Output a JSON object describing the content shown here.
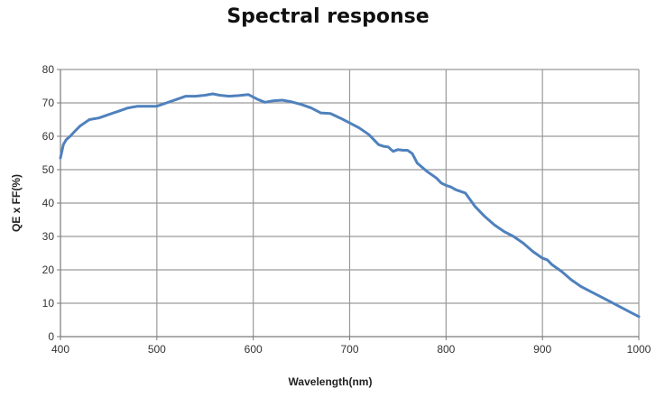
{
  "chart_data": {
    "type": "line",
    "title": "Spectral response",
    "xlabel": "Wavelength(nm)",
    "ylabel": "QE x FF(%)",
    "xlim": [
      400,
      1000
    ],
    "ylim": [
      0,
      80
    ],
    "x_ticks": [
      400,
      500,
      600,
      700,
      800,
      900,
      1000
    ],
    "y_ticks": [
      0,
      10,
      20,
      30,
      40,
      50,
      60,
      70,
      80
    ],
    "grid": true,
    "legend": "none",
    "series": [
      {
        "color": "#4f81bd",
        "x": [
          400,
          403,
          406,
          410,
          415,
          420,
          425,
          430,
          440,
          450,
          460,
          470,
          480,
          490,
          500,
          510,
          520,
          530,
          540,
          550,
          558,
          565,
          575,
          585,
          595,
          605,
          612,
          620,
          630,
          640,
          650,
          660,
          670,
          680,
          690,
          700,
          710,
          720,
          730,
          735,
          740,
          745,
          750,
          755,
          760,
          765,
          770,
          780,
          790,
          795,
          800,
          805,
          810,
          815,
          820,
          830,
          840,
          850,
          860,
          870,
          880,
          890,
          900,
          905,
          910,
          920,
          930,
          940,
          950,
          960,
          970,
          980,
          990,
          1000
        ],
        "values": [
          53.5,
          57.5,
          59,
          60,
          61.5,
          63,
          64,
          65,
          65.5,
          66.5,
          67.5,
          68.5,
          69,
          69,
          69,
          70,
          71,
          72,
          72,
          72.3,
          72.7,
          72.3,
          72,
          72.2,
          72.5,
          71,
          70.2,
          70.6,
          70.8,
          70.3,
          69.5,
          68.5,
          67,
          66.8,
          65.5,
          64,
          62.5,
          60.5,
          57.5,
          57,
          56.8,
          55.5,
          56,
          55.8,
          55.8,
          54.8,
          52,
          49.5,
          47.5,
          46,
          45.3,
          44.8,
          44,
          43.5,
          43,
          39,
          36,
          33.5,
          31.5,
          30,
          28,
          25.5,
          23.5,
          23,
          21.5,
          19.5,
          17,
          15,
          13.5,
          12,
          10.5,
          9,
          7.5,
          6
        ]
      }
    ]
  }
}
